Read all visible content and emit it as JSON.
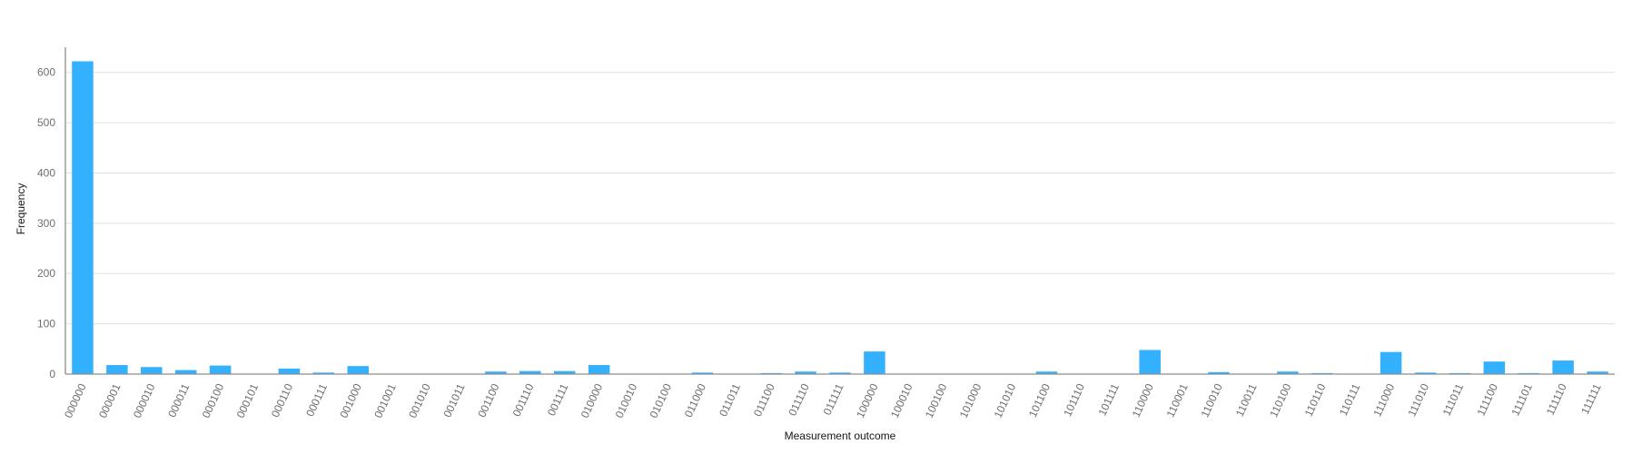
{
  "chart_data": {
    "type": "bar",
    "title": "",
    "xlabel": "Measurement outcome",
    "ylabel": "Frequency",
    "ylim": [
      0,
      650
    ],
    "yticks": [
      0,
      100,
      200,
      300,
      400,
      500,
      600
    ],
    "grid": true,
    "legend": "none",
    "bar_color": "#33b1ff",
    "categories": [
      "000000",
      "000001",
      "000010",
      "000011",
      "000100",
      "000101",
      "000110",
      "000111",
      "001000",
      "001001",
      "001010",
      "001011",
      "001100",
      "001110",
      "001111",
      "010000",
      "010010",
      "010100",
      "011000",
      "011011",
      "011100",
      "011110",
      "011111",
      "100000",
      "100010",
      "100100",
      "101000",
      "101010",
      "101100",
      "101110",
      "101111",
      "110000",
      "110001",
      "110010",
      "110011",
      "110100",
      "110110",
      "110111",
      "111000",
      "111010",
      "111011",
      "111100",
      "111101",
      "111110",
      "111111"
    ],
    "values": [
      622,
      18,
      14,
      8,
      17,
      0,
      11,
      3,
      16,
      0,
      0,
      0,
      5,
      6,
      6,
      18,
      0,
      0,
      3,
      0,
      2,
      5,
      3,
      45,
      0,
      0,
      0,
      0,
      5,
      0,
      0,
      48,
      0,
      4,
      0,
      5,
      2,
      0,
      44,
      3,
      2,
      25,
      2,
      27,
      5
    ]
  }
}
